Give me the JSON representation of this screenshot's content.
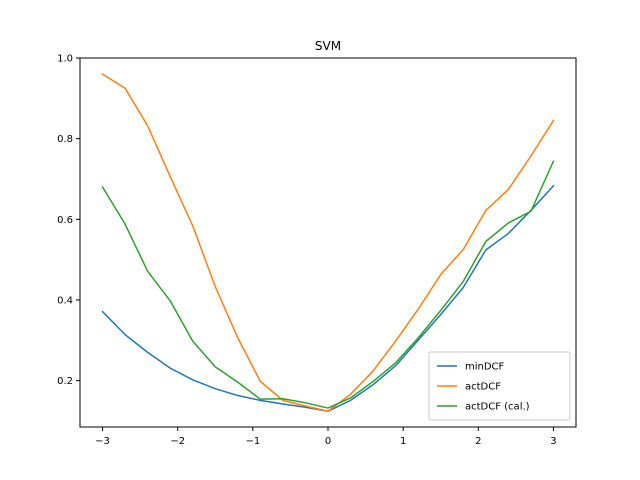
{
  "chart_data": {
    "type": "line",
    "title": "SVM",
    "xlabel": "",
    "ylabel": "",
    "xlim": [
      -3.3,
      3.3
    ],
    "ylim": [
      0.085,
      1.0
    ],
    "xticks": [
      -3,
      -2,
      -1,
      0,
      1,
      2,
      3
    ],
    "xtick_labels": [
      "−3",
      "−2",
      "−1",
      "0",
      "1",
      "2",
      "3"
    ],
    "yticks": [
      0.2,
      0.4,
      0.6,
      0.8,
      1.0
    ],
    "ytick_labels": [
      "0.2",
      "0.4",
      "0.6",
      "0.8",
      "1.0"
    ],
    "grid": false,
    "legend_position": "lower-right",
    "x": [
      -3.0,
      -2.7,
      -2.4,
      -2.1,
      -1.8,
      -1.5,
      -1.2,
      -0.9,
      -0.6,
      -0.3,
      0.0,
      0.3,
      0.6,
      0.9,
      1.2,
      1.5,
      1.8,
      2.1,
      2.4,
      2.7,
      3.0
    ],
    "series": [
      {
        "name": "minDCF",
        "color": "#1f77b4",
        "values": [
          0.371,
          0.314,
          0.27,
          0.231,
          0.202,
          0.18,
          0.163,
          0.151,
          0.142,
          0.134,
          0.124,
          0.151,
          0.19,
          0.237,
          0.3,
          0.364,
          0.431,
          0.524,
          0.565,
          0.622,
          0.683
        ]
      },
      {
        "name": "actDCF",
        "color": "#ff7f0e",
        "values": [
          0.96,
          0.925,
          0.832,
          0.706,
          0.584,
          0.433,
          0.306,
          0.198,
          0.151,
          0.137,
          0.124,
          0.166,
          0.224,
          0.298,
          0.377,
          0.463,
          0.525,
          0.622,
          0.674,
          0.757,
          0.845
        ]
      },
      {
        "name": "actDCF (cal.)",
        "color": "#2ca02c",
        "values": [
          0.68,
          0.588,
          0.471,
          0.398,
          0.298,
          0.234,
          0.196,
          0.154,
          0.155,
          0.145,
          0.132,
          0.157,
          0.198,
          0.244,
          0.306,
          0.374,
          0.446,
          0.545,
          0.591,
          0.62,
          0.744
        ]
      }
    ]
  }
}
